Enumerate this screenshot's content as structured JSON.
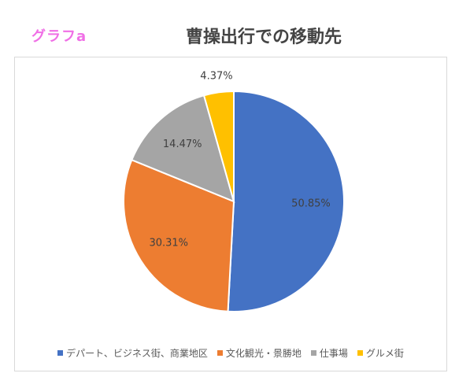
{
  "header": {
    "label": "グラフa",
    "title": "曹操出行での移動先"
  },
  "colors": {
    "s0": "#4472c4",
    "s1": "#ed7d31",
    "s2": "#a5a5a5",
    "s3": "#ffc000"
  },
  "chart_data": {
    "type": "pie",
    "title": "曹操出行での移動先",
    "categories": [
      "デパート、ビジネス街、商業地区",
      "文化観光・景勝地",
      "仕事場",
      "グルメ街"
    ],
    "values": [
      50.85,
      30.31,
      14.47,
      4.37
    ],
    "data_labels": [
      "50.85%",
      "30.31%",
      "14.47%",
      "4.37%"
    ],
    "legend_position": "bottom"
  }
}
